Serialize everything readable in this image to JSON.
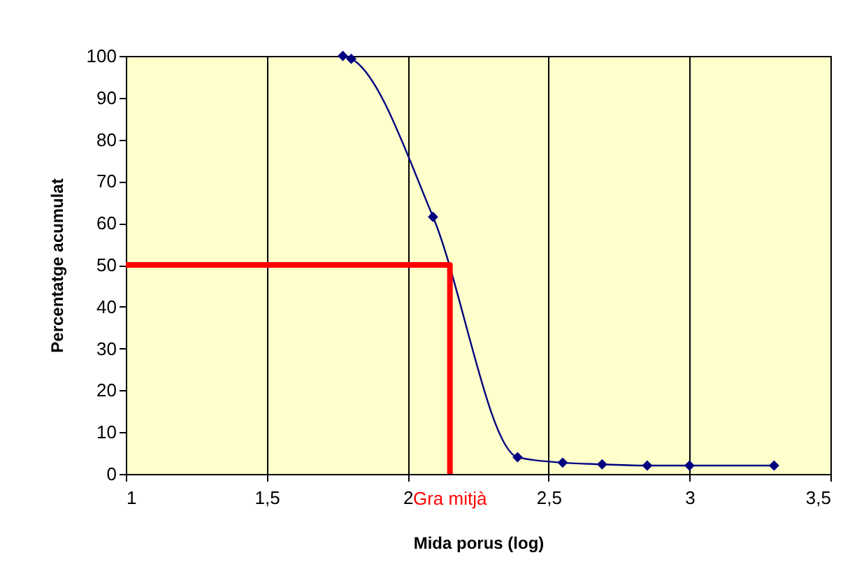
{
  "chart_data": {
    "type": "line",
    "xlabel": "Mida porus (log)",
    "ylabel": "Percentatge acumulat",
    "xlim": [
      1,
      3.5
    ],
    "xticks": [
      1,
      {
        "value": 1.5,
        "label": "1,5"
      },
      2,
      {
        "value": 2.5,
        "label": "2,5"
      },
      3,
      {
        "value": 3.5,
        "label": "3,5"
      }
    ],
    "ylim": [
      0,
      100
    ],
    "yticks": [
      0,
      10,
      20,
      30,
      40,
      50,
      60,
      70,
      80,
      90,
      100
    ],
    "grid": "x",
    "series": [
      {
        "color": "#000080",
        "marker": "diamond",
        "x": [
          1.77,
          1.8,
          2.09,
          2.39,
          2.55,
          2.69,
          2.85,
          3.0,
          3.3
        ],
        "values": [
          100,
          99.3,
          61.5,
          4,
          2.7,
          2.3,
          2,
          2,
          2
        ]
      },
      {
        "color": "#ff0000",
        "marker": "none",
        "x": [
          1,
          2.15,
          2.15
        ],
        "values": [
          50,
          50,
          0
        ]
      }
    ],
    "annotations": [
      {
        "text": "Gra mitjà",
        "x": 2.15,
        "y": 0
      }
    ]
  }
}
